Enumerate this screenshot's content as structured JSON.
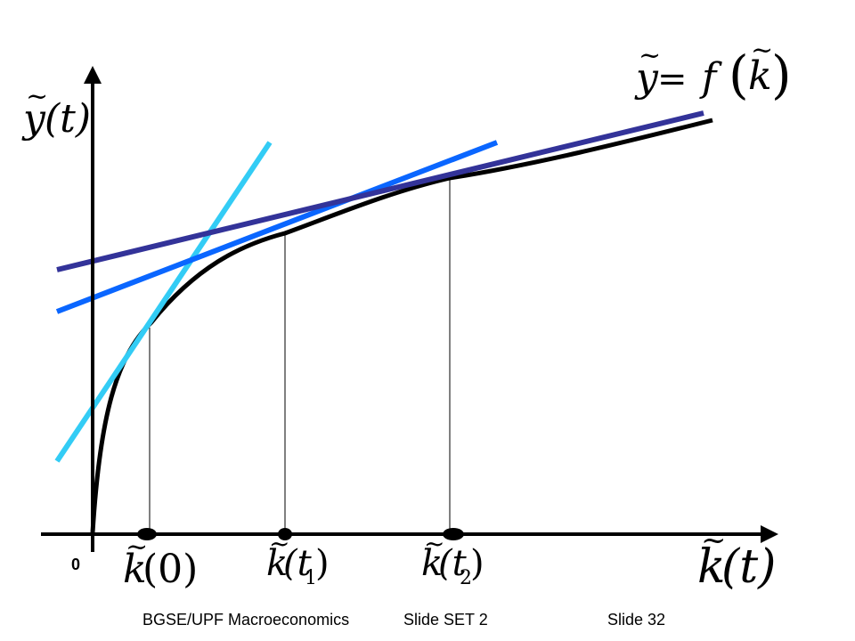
{
  "diagram": {
    "axes": {
      "y_label": {
        "base": "y",
        "tilde": "~",
        "arg": "(t)"
      },
      "x_label": {
        "base": "k",
        "tilde": "~",
        "arg": "(t)"
      },
      "origin": "0"
    },
    "curve_label": {
      "lhs": "y",
      "eq": " = ",
      "fn": "f",
      "arg": "k",
      "tilde": "~"
    },
    "x_markers": [
      {
        "base": "k",
        "tilde": "~",
        "arg": "(0)"
      },
      {
        "base": "k",
        "tilde": "~",
        "arg": "(t",
        "sub": "1",
        "close": ")"
      },
      {
        "base": "k",
        "tilde": "~",
        "arg": "(t",
        "sub": "2",
        "close": ")"
      }
    ],
    "colors": {
      "curve": "#000000",
      "tangent_0": "#33ccf5",
      "tangent_1": "#0a66ff",
      "tangent_2": "#333399",
      "axes": "#000000"
    }
  },
  "footer": {
    "course": "BGSE/UPF Macroeconomics",
    "set": "Slide SET 2",
    "slide": "Slide 32"
  }
}
